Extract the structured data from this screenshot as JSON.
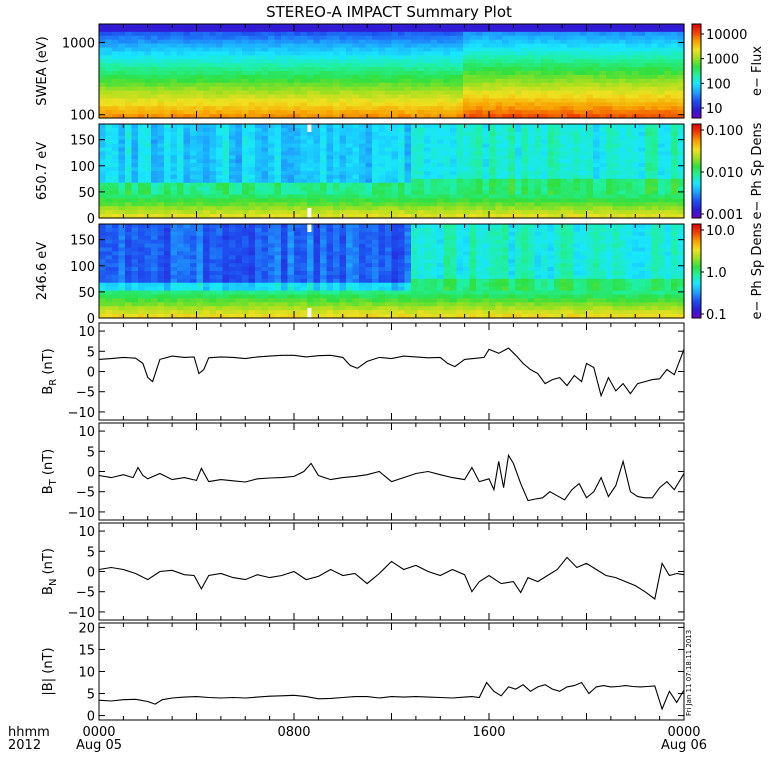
{
  "title": "STEREO-A IMPACT Summary Plot",
  "stamp": "Fri Jan 11 07:18:11 2013",
  "time_axis": {
    "row1_label": "hhmm",
    "row2_label": "2012",
    "ticks": [
      {
        "hour": 0,
        "label": "0000",
        "date": "Aug 05"
      },
      {
        "hour": 8,
        "label": "0800",
        "date": ""
      },
      {
        "hour": 16,
        "label": "1600",
        "date": ""
      },
      {
        "hour": 24,
        "label": "0000",
        "date": "Aug 06"
      }
    ]
  },
  "colors": {
    "line": "#000000",
    "frame": "#000000",
    "gap": "#ffffff",
    "colormap": [
      "#6a00c8",
      "#2a1fd6",
      "#1e50f0",
      "#1ea0ff",
      "#19e6ff",
      "#20f0a0",
      "#30e040",
      "#a0e020",
      "#f0e020",
      "#f8a000",
      "#f04000",
      "#e00000"
    ]
  },
  "chart_data": [
    {
      "type": "heatmap",
      "id": "swea",
      "ylabel": "SWEA (eV)",
      "yscale": "log",
      "ylim": [
        90,
        1800
      ],
      "yticks": [
        {
          "v": 100,
          "label": "100"
        },
        {
          "v": 1000,
          "label": "1000"
        }
      ],
      "colorbar": {
        "label": "e− Flux",
        "scale": "log",
        "ticks": [
          "10",
          "100",
          "1000",
          "10000"
        ]
      }
    },
    {
      "type": "heatmap",
      "id": "pad650",
      "ylabel": "650.7 eV",
      "ylim": [
        0,
        180
      ],
      "yticks": [
        {
          "v": 0,
          "label": "0"
        },
        {
          "v": 50,
          "label": "50"
        },
        {
          "v": 100,
          "label": "100"
        },
        {
          "v": 150,
          "label": "150"
        }
      ],
      "colorbar": {
        "label": "e− Ph Sp Dens",
        "scale": "log",
        "ticks": [
          "0.001",
          "0.010",
          "0.100"
        ]
      }
    },
    {
      "type": "heatmap",
      "id": "pad246",
      "ylabel": "246.6 eV",
      "ylim": [
        0,
        180
      ],
      "yticks": [
        {
          "v": 0,
          "label": "0"
        },
        {
          "v": 50,
          "label": "50"
        },
        {
          "v": 100,
          "label": "100"
        },
        {
          "v": 150,
          "label": "150"
        }
      ],
      "colorbar": {
        "label": "e− Ph Sp Dens",
        "scale": "log",
        "ticks": [
          "0.1",
          "1.0",
          "10.0"
        ]
      }
    },
    {
      "type": "line",
      "id": "br",
      "ylabel_main": "B",
      "ylabel_sub": "R",
      "ylabel_tail": " (nT)",
      "ylim": [
        -12,
        12
      ],
      "yticks": [
        {
          "v": -10,
          "label": "−10"
        },
        {
          "v": -5,
          "label": "−5"
        },
        {
          "v": 0,
          "label": "0"
        },
        {
          "v": 5,
          "label": "5"
        },
        {
          "v": 10,
          "label": "10"
        }
      ],
      "x": [
        0,
        0.5,
        1,
        1.5,
        1.8,
        2,
        2.2,
        2.5,
        3,
        3.5,
        3.9,
        4.1,
        4.3,
        4.5,
        5,
        5.5,
        6,
        6.5,
        7,
        7.5,
        8,
        8.5,
        9,
        9.5,
        10,
        10.3,
        10.6,
        11,
        11.5,
        12,
        12.5,
        13,
        13.5,
        14,
        14.3,
        14.6,
        15,
        15.5,
        15.8,
        16,
        16.4,
        16.8,
        17.1,
        17.4,
        17.7,
        18,
        18.3,
        18.6,
        18.9,
        19.2,
        19.5,
        19.8,
        20,
        20.3,
        20.6,
        20.9,
        21.2,
        21.5,
        21.8,
        22.1,
        22.4,
        22.7,
        23,
        23.3,
        23.6,
        24
      ],
      "y": [
        3,
        3.2,
        3.5,
        3.3,
        2,
        -1.5,
        -2.5,
        3,
        3.8,
        3.5,
        3.6,
        -0.5,
        0.5,
        3.4,
        3.6,
        3.5,
        3.2,
        3.6,
        3.8,
        4,
        4,
        3.6,
        3.9,
        4,
        3.5,
        1.5,
        0.8,
        2.5,
        3.5,
        3.2,
        3.8,
        3.6,
        3.4,
        3.5,
        2,
        1.2,
        3,
        3.3,
        3.5,
        5.5,
        4.5,
        5.8,
        4,
        2,
        0.5,
        -0.5,
        -3,
        -2,
        -1.5,
        -3.5,
        -1,
        -2.5,
        2,
        1,
        -6,
        -1.5,
        -4.8,
        -3,
        -5.5,
        -3,
        -2.5,
        -2,
        -1.8,
        0.5,
        -0.8,
        5.5
      ],
      "gaps": [
        {
          "x0": 8.5,
          "x1": 8.65
        }
      ]
    },
    {
      "type": "line",
      "id": "bt",
      "ylabel_main": "B",
      "ylabel_sub": "T",
      "ylabel_tail": " (nT)",
      "ylim": [
        -12,
        12
      ],
      "yticks": [
        {
          "v": -10,
          "label": "−10"
        },
        {
          "v": -5,
          "label": "−5"
        },
        {
          "v": 0,
          "label": "0"
        },
        {
          "v": 5,
          "label": "5"
        },
        {
          "v": 10,
          "label": "10"
        }
      ],
      "x": [
        0,
        0.5,
        1,
        1.4,
        1.6,
        1.8,
        2,
        2.5,
        3,
        3.5,
        4,
        4.2,
        4.5,
        5,
        5.5,
        6,
        6.5,
        7,
        7.5,
        8,
        8.4,
        8.7,
        9,
        9.5,
        10,
        10.5,
        11,
        11.5,
        12,
        12.5,
        13,
        13.5,
        14,
        14.5,
        15,
        15.3,
        15.6,
        16,
        16.2,
        16.4,
        16.6,
        16.8,
        17,
        17.3,
        17.6,
        17.9,
        18.2,
        18.5,
        18.8,
        19.1,
        19.4,
        19.7,
        20,
        20.3,
        20.6,
        20.9,
        21.2,
        21.5,
        21.8,
        22.1,
        22.4,
        22.7,
        23,
        23.3,
        23.6,
        24
      ],
      "y": [
        -1,
        -1.5,
        -0.8,
        -1.5,
        1,
        -1,
        -1.8,
        -0.5,
        -2,
        -1.5,
        -2.2,
        0.8,
        -2.5,
        -2,
        -2.3,
        -2.6,
        -1.8,
        -1.6,
        -1.5,
        -1.2,
        0,
        2,
        -1,
        -2,
        -1.5,
        -1.2,
        -0.8,
        0,
        -2.5,
        -1.5,
        -0.5,
        0,
        -0.8,
        -1.5,
        -2,
        1,
        -2.5,
        -1.8,
        -4.5,
        2.5,
        -4,
        4,
        2,
        -3,
        -7.2,
        -6.8,
        -6.5,
        -5,
        -6,
        -7,
        -4.5,
        -3,
        -6.5,
        -5,
        -1.5,
        -6.2,
        -3.5,
        2.5,
        -5,
        -6.2,
        -6.5,
        -6.5,
        -4,
        -2.5,
        -4.5,
        -0.5
      ],
      "gaps": [
        {
          "x0": 8.5,
          "x1": 8.65
        }
      ]
    },
    {
      "type": "line",
      "id": "bn",
      "ylabel_main": "B",
      "ylabel_sub": "N",
      "ylabel_tail": " (nT)",
      "ylim": [
        -12,
        12
      ],
      "yticks": [
        {
          "v": -10,
          "label": "−10"
        },
        {
          "v": -5,
          "label": "−5"
        },
        {
          "v": 0,
          "label": "0"
        },
        {
          "v": 5,
          "label": "5"
        },
        {
          "v": 10,
          "label": "10"
        }
      ],
      "x": [
        0,
        0.5,
        1,
        1.5,
        2,
        2.5,
        3,
        3.5,
        3.9,
        4.2,
        4.5,
        5,
        5.5,
        6,
        6.5,
        7,
        7.5,
        8,
        8.5,
        9,
        9.5,
        10,
        10.5,
        11,
        11.5,
        12,
        12.5,
        13,
        13.5,
        14,
        14.5,
        15,
        15.3,
        15.6,
        16,
        16.5,
        17,
        17.3,
        17.6,
        18,
        18.4,
        18.8,
        19.2,
        19.6,
        20,
        20.4,
        20.8,
        21.2,
        21.6,
        22,
        22.4,
        22.8,
        23.1,
        23.4,
        23.7,
        24
      ],
      "y": [
        0.5,
        1,
        0.5,
        -0.5,
        -2,
        0,
        0.3,
        -0.8,
        -1,
        -4.3,
        -1,
        -0.5,
        -1.5,
        -2,
        -0.8,
        -1.5,
        -1,
        0,
        -2,
        -1.2,
        0.5,
        -1,
        -0.5,
        -3,
        -0.5,
        2.5,
        0.5,
        1.5,
        0,
        -1,
        0.5,
        -0.8,
        -5,
        -2.5,
        -1,
        -3,
        -2.5,
        -5.2,
        -1.5,
        -2.5,
        -1,
        0.5,
        3.5,
        1,
        2,
        0.5,
        -1,
        -1.5,
        -2.5,
        -3.5,
        -5,
        -6.8,
        2,
        -1,
        -0.5,
        -0.8
      ],
      "gaps": [
        {
          "x0": 8.5,
          "x1": 8.65
        }
      ]
    },
    {
      "type": "line",
      "id": "bmag",
      "ylabel_main": "|B|",
      "ylabel_sub": "",
      "ylabel_tail": " (nT)",
      "ylim": [
        -1,
        21
      ],
      "yticks": [
        {
          "v": 0,
          "label": "0"
        },
        {
          "v": 5,
          "label": "5"
        },
        {
          "v": 10,
          "label": "10"
        },
        {
          "v": 15,
          "label": "15"
        },
        {
          "v": 20,
          "label": "20"
        }
      ],
      "x": [
        0,
        0.5,
        1,
        1.5,
        2,
        2.3,
        2.6,
        3,
        3.5,
        4,
        4.5,
        5,
        5.5,
        6,
        6.5,
        7,
        7.5,
        8,
        8.5,
        9,
        9.5,
        10,
        10.5,
        11,
        11.5,
        12,
        12.5,
        13,
        13.5,
        14,
        14.5,
        15,
        15.3,
        15.6,
        15.9,
        16.2,
        16.5,
        16.8,
        17.1,
        17.4,
        17.7,
        18,
        18.3,
        18.6,
        18.9,
        19.2,
        19.5,
        19.8,
        20.1,
        20.4,
        20.7,
        21,
        21.3,
        21.6,
        21.9,
        22.2,
        22.5,
        22.8,
        23.1,
        23.4,
        23.7,
        24
      ],
      "y": [
        3.5,
        3.3,
        3.6,
        3.7,
        3.2,
        2.6,
        3.6,
        4,
        4.2,
        4.3,
        4.1,
        4,
        4.1,
        4,
        4.2,
        4.4,
        4.5,
        4.6,
        4.3,
        3.8,
        3.9,
        4.1,
        4.3,
        4.3,
        4,
        4.3,
        4.2,
        4.3,
        4.2,
        4.1,
        4,
        4.2,
        4.3,
        4.1,
        7.5,
        5.5,
        4.5,
        6.5,
        6,
        7,
        5.5,
        6.5,
        7,
        6,
        5.5,
        6.5,
        6.8,
        7.5,
        5,
        6.5,
        6.8,
        6.5,
        6.6,
        6.8,
        6.6,
        6.5,
        6.6,
        6.7,
        1.5,
        5.5,
        3,
        5.8
      ],
      "gaps": [
        {
          "x0": 8.5,
          "x1": 8.65
        }
      ]
    }
  ]
}
